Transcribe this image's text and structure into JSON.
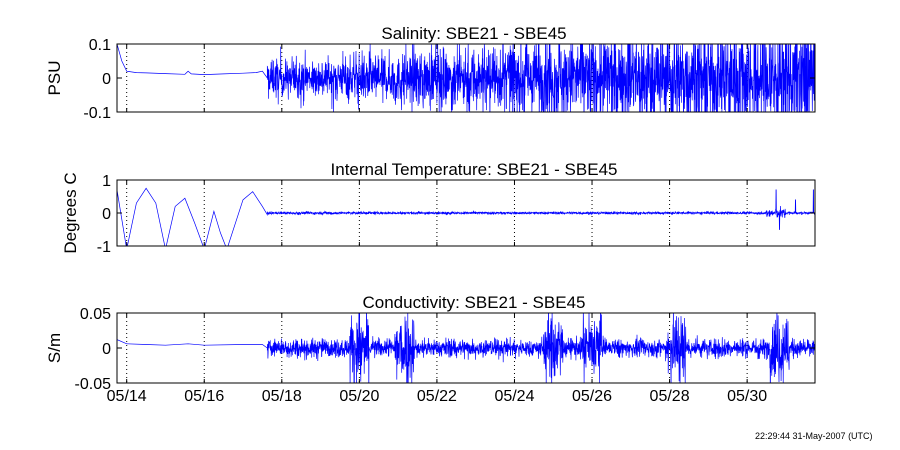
{
  "chart_data": [
    {
      "type": "line",
      "title": "Salinity: SBE21 - SBE45",
      "ylabel": "PSU",
      "ylim": [
        -0.1,
        0.1
      ],
      "yticks": [
        {
          "v": 0.1,
          "label": "0.1"
        },
        {
          "v": 0,
          "label": "0"
        },
        {
          "v": -0.1,
          "label": "-0.1"
        }
      ],
      "xlim": [
        "05/13 18:00",
        "05/31 18:00"
      ],
      "grid": "vertical dotted",
      "series": [
        {
          "color": "#0000ff",
          "quiet": [
            [
              "05/13 18:00",
              0.1
            ],
            [
              "05/13 21:00",
              0.05
            ],
            [
              "05/14 00:00",
              0.02
            ],
            [
              "05/14 06:00",
              0.016
            ],
            [
              "05/14 12:00",
              0.015
            ],
            [
              "05/15 00:00",
              0.013
            ],
            [
              "05/15 12:00",
              0.011
            ],
            [
              "05/15 14:00",
              0.02
            ],
            [
              "05/15 16:00",
              0.012
            ],
            [
              "05/16 00:00",
              0.01
            ],
            [
              "05/16 12:00",
              0.012
            ],
            [
              "05/17 00:00",
              0.014
            ],
            [
              "05/17 08:00",
              0.016
            ],
            [
              "05/17 12:00",
              0.02
            ]
          ],
          "noisy_from": "05/17 15:00",
          "noise_amplitude_psu": 0.05,
          "note_values": "values past 05/17 15:00 are dense noise around 0 that frequently exceeds ±0.1"
        }
      ]
    },
    {
      "type": "line",
      "title": "Internal Temperature: SBE21 - SBE45",
      "ylabel": "Degrees C",
      "ylim": [
        -1,
        1
      ],
      "yticks": [
        {
          "v": 1,
          "label": "1"
        },
        {
          "v": 0,
          "label": "0"
        },
        {
          "v": -1,
          "label": "-1"
        }
      ],
      "xlim": [
        "05/13 18:00",
        "05/31 18:00"
      ],
      "grid": "vertical dotted",
      "series": [
        {
          "color": "#0000ff",
          "quiet": [
            [
              "05/13 18:00",
              0.7
            ],
            [
              "05/14 00:00",
              -1.1
            ],
            [
              "05/14 06:00",
              0.3
            ],
            [
              "05/14 12:00",
              0.75
            ],
            [
              "05/14 18:00",
              0.3
            ],
            [
              "05/15 00:00",
              -1.1
            ],
            [
              "05/15 06:00",
              0.2
            ],
            [
              "05/15 12:00",
              0.45
            ],
            [
              "05/15 18:00",
              -0.3
            ],
            [
              "05/16 00:00",
              -1.1
            ],
            [
              "05/16 06:00",
              0.05
            ],
            [
              "05/16 10:00",
              -0.6
            ],
            [
              "05/16 14:00",
              -1.1
            ],
            [
              "05/17 00:00",
              0.4
            ],
            [
              "05/17 06:00",
              0.65
            ],
            [
              "05/17 12:00",
              0.2
            ],
            [
              "05/17 15:00",
              -0.05
            ]
          ],
          "noisy_from": "05/17 15:00",
          "noise_amplitude_c": 0.03,
          "spikes": [
            [
              "05/30 18:00",
              0.7
            ],
            [
              "05/30 20:00",
              -0.5
            ],
            [
              "05/31 06:00",
              0.4
            ],
            [
              "05/31 17:00",
              0.7
            ]
          ]
        }
      ]
    },
    {
      "type": "line",
      "title": "Conductivity: SBE21 - SBE45",
      "ylabel": "S/m",
      "ylim": [
        -0.05,
        0.05
      ],
      "yticks": [
        {
          "v": 0.05,
          "label": "0.05"
        },
        {
          "v": 0,
          "label": "0"
        },
        {
          "v": -0.05,
          "label": "-0.05"
        }
      ],
      "xlim": [
        "05/13 18:00",
        "05/31 18:00"
      ],
      "xticks": [
        {
          "v": "05/14",
          "label": "05/14"
        },
        {
          "v": "05/16",
          "label": "05/16"
        },
        {
          "v": "05/18",
          "label": "05/18"
        },
        {
          "v": "05/20",
          "label": "05/20"
        },
        {
          "v": "05/22",
          "label": "05/22"
        },
        {
          "v": "05/24",
          "label": "05/24"
        },
        {
          "v": "05/26",
          "label": "05/26"
        },
        {
          "v": "05/28",
          "label": "05/28"
        },
        {
          "v": "05/30",
          "label": "05/30"
        }
      ],
      "grid": "vertical dotted",
      "series": [
        {
          "color": "#0000ff",
          "quiet": [
            [
              "05/13 18:00",
              0.012
            ],
            [
              "05/14 00:00",
              0.006
            ],
            [
              "05/14 12:00",
              0.005
            ],
            [
              "05/15 00:00",
              0.004
            ],
            [
              "05/15 14:00",
              0.006
            ],
            [
              "05/16 00:00",
              0.004
            ],
            [
              "05/17 00:00",
              0.005
            ],
            [
              "05/17 12:00",
              0.005
            ]
          ],
          "noisy_from": "05/17 15:00",
          "noise_amplitude_sm": 0.01,
          "bursts": [
            "05/20 00:00",
            "05/21 04:00",
            "05/25 00:00",
            "05/26 00:00",
            "05/28 04:00",
            "05/30 20:00"
          ]
        }
      ]
    }
  ],
  "timestamp": "22:29:44 31-May-2007 (UTC)"
}
